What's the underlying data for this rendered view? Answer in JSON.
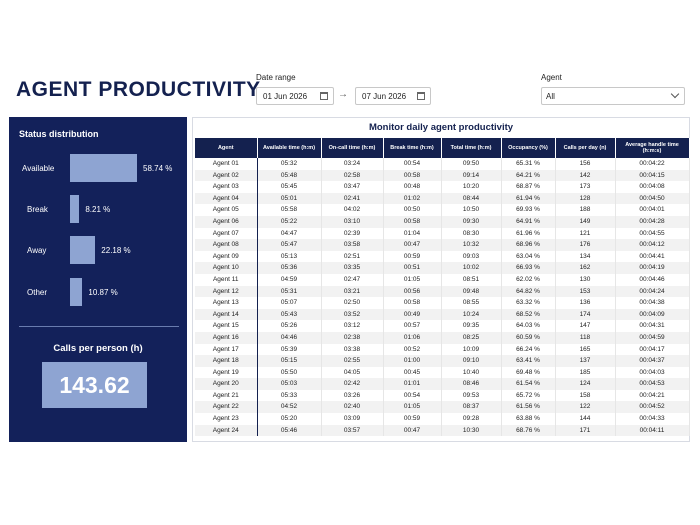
{
  "header": {
    "title": "AGENT PRODUCTIVITY",
    "date_range_label": "Date range",
    "date_from": "01 Jun 2026",
    "date_to": "07 Jun 2026",
    "agent_label": "Agent",
    "agent_value": "All"
  },
  "status_distribution": {
    "title": "Status distribution",
    "items": [
      {
        "label": "Available",
        "pct": "58.74 %",
        "value": 58.74
      },
      {
        "label": "Break",
        "pct": "8.21 %",
        "value": 8.21
      },
      {
        "label": "Away",
        "pct": "22.18 %",
        "value": 22.18
      },
      {
        "label": "Other",
        "pct": "10.87 %",
        "value": 10.87
      }
    ]
  },
  "calls_per_person": {
    "title": "Calls per person (h)",
    "value": "143.62"
  },
  "table": {
    "title": "Monitor daily agent productivity",
    "headers": [
      "Agent",
      "Available time (h:m)",
      "On-call time (h:m)",
      "Break time (h:m)",
      "Total time (h:m)",
      "Occupancy (%)",
      "Calls per day (n)",
      "Average handle time (h:m:s)"
    ],
    "rows": [
      [
        "Agent 01",
        "05:32",
        "03:24",
        "00:54",
        "09:50",
        "65.31 %",
        "156",
        "00:04:22"
      ],
      [
        "Agent 02",
        "05:48",
        "02:58",
        "00:58",
        "09:14",
        "64.21 %",
        "142",
        "00:04:15"
      ],
      [
        "Agent 03",
        "05:45",
        "03:47",
        "00:48",
        "10:20",
        "68.87 %",
        "173",
        "00:04:08"
      ],
      [
        "Agent 04",
        "05:01",
        "02:41",
        "01:02",
        "08:44",
        "61.94 %",
        "128",
        "00:04:50"
      ],
      [
        "Agent 05",
        "05:58",
        "04:02",
        "00:50",
        "10:50",
        "69.93 %",
        "188",
        "00:04:01"
      ],
      [
        "Agent 06",
        "05:22",
        "03:10",
        "00:58",
        "09:30",
        "64.91 %",
        "149",
        "00:04:28"
      ],
      [
        "Agent 07",
        "04:47",
        "02:39",
        "01:04",
        "08:30",
        "61.96 %",
        "121",
        "00:04:55"
      ],
      [
        "Agent 08",
        "05:47",
        "03:58",
        "00:47",
        "10:32",
        "68.96 %",
        "176",
        "00:04:12"
      ],
      [
        "Agent 09",
        "05:13",
        "02:51",
        "00:59",
        "09:03",
        "63.04 %",
        "134",
        "00:04:41"
      ],
      [
        "Agent 10",
        "05:36",
        "03:35",
        "00:51",
        "10:02",
        "66.93 %",
        "162",
        "00:04:19"
      ],
      [
        "Agent 11",
        "04:59",
        "02:47",
        "01:05",
        "08:51",
        "62.02 %",
        "130",
        "00:04:46"
      ],
      [
        "Agent 12",
        "05:31",
        "03:21",
        "00:56",
        "09:48",
        "64.82 %",
        "153",
        "00:04:24"
      ],
      [
        "Agent 13",
        "05:07",
        "02:50",
        "00:58",
        "08:55",
        "63.32 %",
        "136",
        "00:04:38"
      ],
      [
        "Agent 14",
        "05:43",
        "03:52",
        "00:49",
        "10:24",
        "68.52 %",
        "174",
        "00:04:09"
      ],
      [
        "Agent 15",
        "05:26",
        "03:12",
        "00:57",
        "09:35",
        "64.03 %",
        "147",
        "00:04:31"
      ],
      [
        "Agent 16",
        "04:46",
        "02:38",
        "01:06",
        "08:25",
        "60.59 %",
        "118",
        "00:04:59"
      ],
      [
        "Agent 17",
        "05:39",
        "03:38",
        "00:52",
        "10:09",
        "66.24 %",
        "165",
        "00:04:17"
      ],
      [
        "Agent 18",
        "05:15",
        "02:55",
        "01:00",
        "09:10",
        "63.41 %",
        "137",
        "00:04:37"
      ],
      [
        "Agent 19",
        "05:50",
        "04:05",
        "00:45",
        "10:40",
        "69.48 %",
        "185",
        "00:04:03"
      ],
      [
        "Agent 20",
        "05:03",
        "02:42",
        "01:01",
        "08:46",
        "61.54 %",
        "124",
        "00:04:53"
      ],
      [
        "Agent 21",
        "05:33",
        "03:26",
        "00:54",
        "09:53",
        "65.72 %",
        "158",
        "00:04:21"
      ],
      [
        "Agent 22",
        "04:52",
        "02:40",
        "01:05",
        "08:37",
        "61.56 %",
        "122",
        "00:04:52"
      ],
      [
        "Agent 23",
        "05:20",
        "03:09",
        "00:59",
        "09:28",
        "63.88 %",
        "144",
        "00:04:33"
      ],
      [
        "Agent 24",
        "05:46",
        "03:57",
        "00:47",
        "10:30",
        "68.76 %",
        "171",
        "00:04:11"
      ]
    ]
  }
}
